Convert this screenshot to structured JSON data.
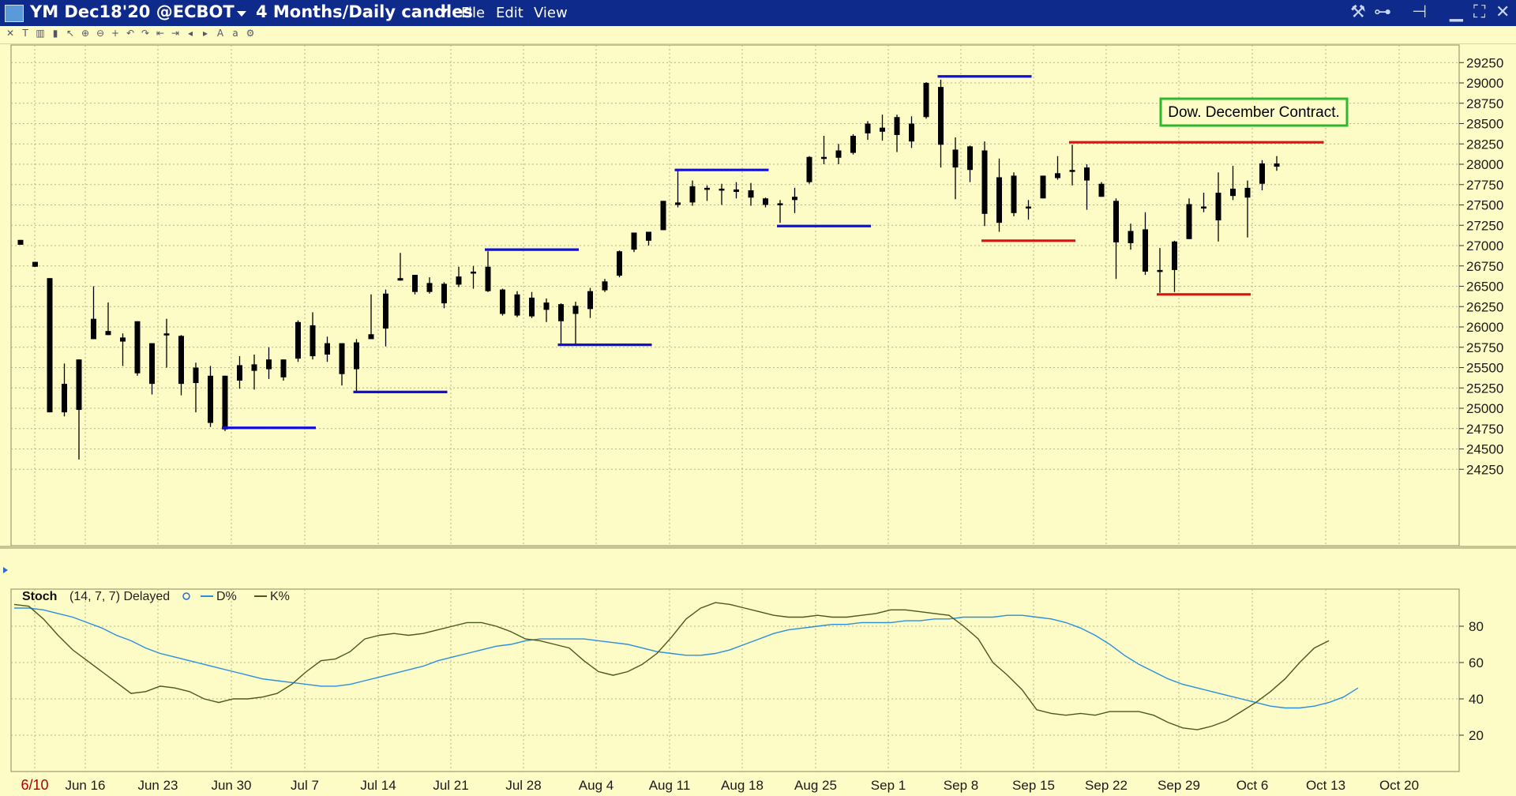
{
  "window": {
    "title": "YM Dec18'20 @ECBOT",
    "period": "4 Months/Daily candles",
    "menu": [
      "File",
      "Edit",
      "View"
    ]
  },
  "colors": {
    "background": "#fdfbc6",
    "titlebar": "#0e2a8a",
    "grid": "#b8b68a",
    "candle": "#000000",
    "support_line_blue": "#1010d8",
    "resistance_line_red": "#e01010",
    "d_line": "#2a8fe0",
    "k_line": "#4a5a1a",
    "annotation_border": "#2db82d"
  },
  "toolbar_icons": [
    "close-icon",
    "text-tool-icon",
    "bar-chart-icon",
    "candle-icon",
    "pointer-icon",
    "zoom-in-icon",
    "zoom-out-icon",
    "crosshair-icon",
    "undo-icon",
    "redo-icon",
    "scroll-left-icon",
    "scroll-right-icon",
    "step-left-icon",
    "step-right-icon",
    "font-icon",
    "font-size-icon",
    "settings-icon"
  ],
  "chart_data": [
    {
      "type": "candlestick",
      "title": "YM Dec18'20 @ECBOT 4 Months/Daily candles",
      "annotation": "Dow. December Contract.",
      "ylim": [
        24000,
        29400
      ],
      "yticks": [
        29250,
        29000,
        28750,
        28500,
        28250,
        28000,
        27750,
        27500,
        27250,
        27000,
        26750,
        26500,
        26250,
        26000,
        25750,
        25500,
        25250,
        25000,
        24750,
        24500,
        24250
      ],
      "xticks": [
        "6/10",
        "Jun 16",
        "Jun 23",
        "Jun 30",
        "Jul 7",
        "Jul 14",
        "Jul 21",
        "Jul 28",
        "Aug 4",
        "Aug 11",
        "Aug 18",
        "Aug 25",
        "Sep 1",
        "Sep 8",
        "Sep 15",
        "Sep 22",
        "Sep 29",
        "Oct 6",
        "Oct 13",
        "Oct 20"
      ],
      "candles": [
        {
          "i": 0,
          "o": 27070,
          "h": 27070,
          "l": 27010,
          "c": 27010
        },
        {
          "i": 1,
          "o": 26800,
          "h": 26800,
          "l": 26740,
          "c": 26740
        },
        {
          "i": 2,
          "o": 26600,
          "h": 26600,
          "l": 24950,
          "c": 24950
        },
        {
          "i": 3,
          "o": 25300,
          "h": 25550,
          "l": 24900,
          "c": 24950
        },
        {
          "i": 4,
          "o": 25600,
          "h": 25600,
          "l": 24370,
          "c": 24980
        },
        {
          "i": 5,
          "o": 25850,
          "h": 26500,
          "l": 25850,
          "c": 26100
        },
        {
          "i": 6,
          "o": 25950,
          "h": 26300,
          "l": 25900,
          "c": 25900
        },
        {
          "i": 7,
          "o": 25870,
          "h": 25920,
          "l": 25520,
          "c": 25820
        },
        {
          "i": 8,
          "o": 26070,
          "h": 26070,
          "l": 25400,
          "c": 25430
        },
        {
          "i": 9,
          "o": 25800,
          "h": 25800,
          "l": 25170,
          "c": 25300
        },
        {
          "i": 10,
          "o": 25920,
          "h": 26100,
          "l": 25500,
          "c": 25900
        },
        {
          "i": 11,
          "o": 25890,
          "h": 25900,
          "l": 25160,
          "c": 25300
        },
        {
          "i": 12,
          "o": 25500,
          "h": 25560,
          "l": 24950,
          "c": 25310
        },
        {
          "i": 13,
          "o": 25400,
          "h": 25520,
          "l": 24770,
          "c": 24820
        },
        {
          "i": 14,
          "o": 25400,
          "h": 25400,
          "l": 24720,
          "c": 24740
        },
        {
          "i": 15,
          "o": 25340,
          "h": 25640,
          "l": 25240,
          "c": 25530
        },
        {
          "i": 16,
          "o": 25460,
          "h": 25660,
          "l": 25230,
          "c": 25540
        },
        {
          "i": 17,
          "o": 25480,
          "h": 25750,
          "l": 25360,
          "c": 25600
        },
        {
          "i": 18,
          "o": 25600,
          "h": 25600,
          "l": 25340,
          "c": 25380
        },
        {
          "i": 19,
          "o": 25610,
          "h": 26080,
          "l": 25570,
          "c": 26060
        },
        {
          "i": 20,
          "o": 26020,
          "h": 26180,
          "l": 25600,
          "c": 25640
        },
        {
          "i": 21,
          "o": 25660,
          "h": 25880,
          "l": 25570,
          "c": 25800
        },
        {
          "i": 22,
          "o": 25800,
          "h": 25800,
          "l": 25280,
          "c": 25420
        },
        {
          "i": 23,
          "o": 25480,
          "h": 25850,
          "l": 25200,
          "c": 25810
        },
        {
          "i": 24,
          "o": 25850,
          "h": 26400,
          "l": 25850,
          "c": 25910
        },
        {
          "i": 25,
          "o": 25980,
          "h": 26460,
          "l": 25760,
          "c": 26410
        },
        {
          "i": 26,
          "o": 26570,
          "h": 26910,
          "l": 26570,
          "c": 26600
        },
        {
          "i": 27,
          "o": 26640,
          "h": 26640,
          "l": 26400,
          "c": 26430
        },
        {
          "i": 28,
          "o": 26540,
          "h": 26610,
          "l": 26410,
          "c": 26430
        },
        {
          "i": 29,
          "o": 26530,
          "h": 26550,
          "l": 26230,
          "c": 26290
        },
        {
          "i": 30,
          "o": 26520,
          "h": 26740,
          "l": 26490,
          "c": 26620
        },
        {
          "i": 31,
          "o": 26680,
          "h": 26750,
          "l": 26470,
          "c": 26680
        },
        {
          "i": 32,
          "o": 26740,
          "h": 26930,
          "l": 26430,
          "c": 26440
        },
        {
          "i": 33,
          "o": 26460,
          "h": 26470,
          "l": 26140,
          "c": 26160
        },
        {
          "i": 34,
          "o": 26400,
          "h": 26440,
          "l": 26120,
          "c": 26140
        },
        {
          "i": 35,
          "o": 26360,
          "h": 26430,
          "l": 26110,
          "c": 26130
        },
        {
          "i": 36,
          "o": 26300,
          "h": 26350,
          "l": 26060,
          "c": 26210
        },
        {
          "i": 37,
          "o": 26280,
          "h": 26290,
          "l": 25780,
          "c": 26070
        },
        {
          "i": 38,
          "o": 26260,
          "h": 26310,
          "l": 25780,
          "c": 26160
        },
        {
          "i": 39,
          "o": 26220,
          "h": 26480,
          "l": 26110,
          "c": 26440
        },
        {
          "i": 40,
          "o": 26560,
          "h": 26590,
          "l": 26430,
          "c": 26450
        },
        {
          "i": 41,
          "o": 26630,
          "h": 26940,
          "l": 26610,
          "c": 26930
        },
        {
          "i": 42,
          "o": 26950,
          "h": 27150,
          "l": 26920,
          "c": 27160
        },
        {
          "i": 43,
          "o": 27060,
          "h": 27170,
          "l": 27000,
          "c": 27170
        },
        {
          "i": 44,
          "o": 27190,
          "h": 27550,
          "l": 27190,
          "c": 27550
        },
        {
          "i": 45,
          "o": 27530,
          "h": 27930,
          "l": 27470,
          "c": 27500
        },
        {
          "i": 46,
          "o": 27530,
          "h": 27800,
          "l": 27490,
          "c": 27730
        },
        {
          "i": 47,
          "o": 27710,
          "h": 27740,
          "l": 27550,
          "c": 27700
        },
        {
          "i": 48,
          "o": 27700,
          "h": 27760,
          "l": 27500,
          "c": 27680
        },
        {
          "i": 49,
          "o": 27690,
          "h": 27780,
          "l": 27580,
          "c": 27660
        },
        {
          "i": 50,
          "o": 27680,
          "h": 27770,
          "l": 27490,
          "c": 27590
        },
        {
          "i": 51,
          "o": 27580,
          "h": 27590,
          "l": 27470,
          "c": 27500
        },
        {
          "i": 52,
          "o": 27520,
          "h": 27560,
          "l": 27280,
          "c": 27520
        },
        {
          "i": 53,
          "o": 27560,
          "h": 27710,
          "l": 27400,
          "c": 27600
        },
        {
          "i": 54,
          "o": 27780,
          "h": 28100,
          "l": 27760,
          "c": 28090
        },
        {
          "i": 55,
          "o": 28090,
          "h": 28350,
          "l": 28000,
          "c": 28090
        },
        {
          "i": 56,
          "o": 28170,
          "h": 28250,
          "l": 28000,
          "c": 28080
        },
        {
          "i": 57,
          "o": 28140,
          "h": 28370,
          "l": 28120,
          "c": 28350
        },
        {
          "i": 58,
          "o": 28380,
          "h": 28530,
          "l": 28300,
          "c": 28500
        },
        {
          "i": 59,
          "o": 28450,
          "h": 28610,
          "l": 28290,
          "c": 28400
        },
        {
          "i": 60,
          "o": 28360,
          "h": 28610,
          "l": 28150,
          "c": 28580
        },
        {
          "i": 61,
          "o": 28500,
          "h": 28590,
          "l": 28200,
          "c": 28280
        },
        {
          "i": 62,
          "o": 28580,
          "h": 29010,
          "l": 28560,
          "c": 29000
        },
        {
          "i": 63,
          "o": 28950,
          "h": 29040,
          "l": 27960,
          "c": 28240
        },
        {
          "i": 64,
          "o": 28180,
          "h": 28330,
          "l": 27570,
          "c": 27960
        },
        {
          "i": 65,
          "o": 28220,
          "h": 28230,
          "l": 27780,
          "c": 27930
        },
        {
          "i": 66,
          "o": 28170,
          "h": 28280,
          "l": 27240,
          "c": 27390
        },
        {
          "i": 67,
          "o": 27840,
          "h": 28070,
          "l": 27170,
          "c": 27280
        },
        {
          "i": 68,
          "o": 27860,
          "h": 27900,
          "l": 27360,
          "c": 27400
        },
        {
          "i": 69,
          "o": 27480,
          "h": 27560,
          "l": 27320,
          "c": 27470
        },
        {
          "i": 70,
          "o": 27580,
          "h": 27860,
          "l": 27580,
          "c": 27860
        },
        {
          "i": 71,
          "o": 27830,
          "h": 28100,
          "l": 27810,
          "c": 27890
        },
        {
          "i": 72,
          "o": 27930,
          "h": 28240,
          "l": 27740,
          "c": 27910
        },
        {
          "i": 73,
          "o": 27960,
          "h": 28000,
          "l": 27440,
          "c": 27800
        },
        {
          "i": 74,
          "o": 27760,
          "h": 27780,
          "l": 27600,
          "c": 27600
        },
        {
          "i": 75,
          "o": 27550,
          "h": 27580,
          "l": 26590,
          "c": 27040
        },
        {
          "i": 76,
          "o": 27180,
          "h": 27270,
          "l": 26950,
          "c": 27030
        },
        {
          "i": 77,
          "o": 27200,
          "h": 27410,
          "l": 26640,
          "c": 26680
        },
        {
          "i": 78,
          "o": 26700,
          "h": 26970,
          "l": 26420,
          "c": 26680
        },
        {
          "i": 79,
          "o": 26700,
          "h": 27060,
          "l": 26430,
          "c": 27050
        },
        {
          "i": 80,
          "o": 27080,
          "h": 27580,
          "l": 27080,
          "c": 27510
        },
        {
          "i": 81,
          "o": 27470,
          "h": 27650,
          "l": 27410,
          "c": 27480
        },
        {
          "i": 82,
          "o": 27310,
          "h": 27900,
          "l": 27050,
          "c": 27650
        },
        {
          "i": 83,
          "o": 27610,
          "h": 27980,
          "l": 27560,
          "c": 27700
        },
        {
          "i": 84,
          "o": 27710,
          "h": 27800,
          "l": 27100,
          "c": 27590
        },
        {
          "i": 85,
          "o": 27760,
          "h": 28050,
          "l": 27680,
          "c": 28010
        },
        {
          "i": 86,
          "o": 27970,
          "h": 28100,
          "l": 27920,
          "c": 28010
        }
      ],
      "horizontal_lines": [
        {
          "color": "blue",
          "y": 24760,
          "i0": 14,
          "i1": 20
        },
        {
          "color": "blue",
          "y": 25200,
          "i0": 23,
          "i1": 29
        },
        {
          "color": "blue",
          "y": 26950,
          "i0": 32,
          "i1": 38
        },
        {
          "color": "blue",
          "y": 25780,
          "i0": 37,
          "i1": 43
        },
        {
          "color": "blue",
          "y": 27930,
          "i0": 45,
          "i1": 51
        },
        {
          "color": "blue",
          "y": 27240,
          "i0": 52,
          "i1": 58
        },
        {
          "color": "blue",
          "y": 29080,
          "i0": 63,
          "i1": 69
        },
        {
          "color": "red",
          "y": 27060,
          "i0": 66,
          "i1": 72
        },
        {
          "color": "red",
          "y": 28270,
          "i0": 72,
          "i1": 89
        },
        {
          "color": "red",
          "y": 26400,
          "i0": 78,
          "i1": 84
        }
      ]
    },
    {
      "type": "line",
      "title": "Stoch",
      "params": "(14, 7, 7) Delayed",
      "ylim": [
        0,
        100
      ],
      "yticks": [
        80,
        60,
        40,
        20
      ],
      "series": [
        {
          "name": "D%",
          "color": "#2a8fe0",
          "values": [
            90,
            90,
            89,
            87,
            85,
            82,
            79,
            75,
            72,
            68,
            65,
            63,
            61,
            59,
            57,
            55,
            53,
            51,
            50,
            49,
            48,
            47,
            47,
            48,
            50,
            52,
            54,
            56,
            58,
            61,
            63,
            65,
            67,
            69,
            70,
            72,
            73,
            73,
            73,
            73,
            72,
            71,
            70,
            68,
            66,
            65,
            64,
            64,
            65,
            67,
            70,
            73,
            76,
            78,
            79,
            80,
            81,
            81,
            82,
            82,
            82,
            83,
            83,
            84,
            84,
            85,
            85,
            85,
            86,
            86,
            85,
            84,
            82,
            79,
            75,
            70,
            64,
            59,
            55,
            51,
            48,
            46,
            44,
            42,
            40,
            38,
            36,
            35,
            35,
            36,
            38,
            41,
            46
          ]
        },
        {
          "name": "K%",
          "color": "#4a5a1a",
          "values": [
            92,
            91,
            84,
            75,
            67,
            61,
            55,
            49,
            43,
            44,
            47,
            46,
            44,
            40,
            38,
            40,
            40,
            41,
            43,
            48,
            55,
            61,
            62,
            66,
            73,
            75,
            76,
            75,
            76,
            78,
            80,
            82,
            82,
            80,
            77,
            73,
            72,
            70,
            68,
            61,
            55,
            53,
            55,
            59,
            65,
            74,
            84,
            90,
            93,
            92,
            90,
            88,
            86,
            85,
            85,
            86,
            85,
            85,
            86,
            87,
            89,
            89,
            88,
            87,
            86,
            80,
            73,
            60,
            53,
            45,
            34,
            32,
            31,
            32,
            31,
            33,
            33,
            33,
            31,
            27,
            24,
            23,
            25,
            28,
            33,
            38,
            44,
            51,
            60,
            68,
            72
          ]
        }
      ]
    }
  ]
}
